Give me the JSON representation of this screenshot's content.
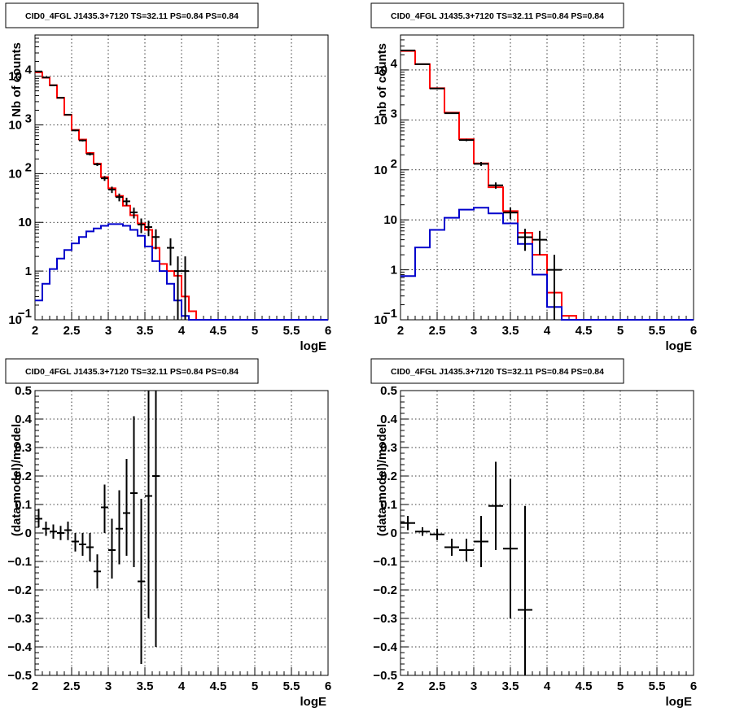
{
  "title_text": "CID0_4FGL J1435.3+7120 TS=32.11 PS=0.84 PS=0.84",
  "colors": {
    "data": "#000000",
    "model_total": "#ff0000",
    "model_source": "#0000cc",
    "grid": "#000000"
  },
  "chart_data": [
    {
      "type": "line",
      "title": "CID0_4FGL J1435.3+7120 TS=32.11 PS=0.84 PS=0.84",
      "xlabel": "logE",
      "ylabel": "Nb of counts",
      "xlim": [
        2,
        6
      ],
      "ylim": [
        0.1,
        70000
      ],
      "yscale": "log",
      "grid": true,
      "xticks": [
        "2",
        "2.5",
        "3",
        "3.5",
        "4",
        "4.5",
        "5",
        "5.5",
        "6"
      ],
      "yticks": [
        {
          "value": 0.1,
          "label": "10",
          "sup": "−1"
        },
        {
          "value": 1,
          "label": "1",
          "sup": ""
        },
        {
          "value": 10,
          "label": "10",
          "sup": ""
        },
        {
          "value": 100,
          "label": "10",
          "sup": "2"
        },
        {
          "value": 1000,
          "label": "10",
          "sup": "3"
        },
        {
          "value": 10000,
          "label": "10",
          "sup": "4"
        }
      ],
      "bin_edges": [
        2.0,
        2.1,
        2.2,
        2.3,
        2.4,
        2.5,
        2.6,
        2.7,
        2.8,
        2.9,
        3.0,
        3.1,
        3.2,
        3.3,
        3.4,
        3.5,
        3.6,
        3.7,
        3.8,
        3.9,
        4.0,
        4.1,
        4.2,
        4.3,
        4.4,
        4.5,
        4.6,
        4.7,
        4.8,
        4.9,
        5.0,
        5.1,
        5.2,
        5.3,
        5.4,
        5.5,
        5.6,
        5.7,
        5.8,
        5.9,
        6.0
      ],
      "series": [
        {
          "name": "",
          "kind": "step",
          "color": "#ff0000",
          "values": [
            12000,
            9300,
            6500,
            3600,
            1600,
            790,
            500,
            265,
            160,
            85,
            50,
            35,
            22,
            14,
            9.5,
            7.0,
            3.0,
            1.4,
            1.0,
            0.8,
            0.3,
            0.15,
            0.1,
            0.1,
            0.1,
            0.1,
            0.1,
            0.1,
            0.1,
            0.1,
            0.1,
            0.1,
            0.1,
            0.1,
            0.1,
            0.1,
            0.1,
            0.1,
            0.1,
            0.1
          ]
        },
        {
          "name": "",
          "kind": "step",
          "color": "#0000cc",
          "values": [
            0.25,
            0.55,
            1.1,
            1.8,
            2.7,
            3.7,
            5.0,
            6.5,
            7.5,
            8.5,
            9.2,
            9.2,
            8.5,
            7.0,
            5.3,
            3.2,
            1.6,
            1.0,
            0.55,
            0.25,
            0.12,
            0.1,
            0.1,
            0.1,
            0.1,
            0.1,
            0.1,
            0.1,
            0.1,
            0.1,
            0.1,
            0.1,
            0.1,
            0.1,
            0.1,
            0.1,
            0.1,
            0.1,
            0.1,
            0.1
          ]
        },
        {
          "name": "",
          "kind": "errorbars",
          "color": "#000000",
          "points": [
            {
              "x": 2.05,
              "y": 12500,
              "lo": 12390,
              "hi": 12610
            },
            {
              "x": 2.15,
              "y": 9400,
              "lo": 9300,
              "hi": 9500
            },
            {
              "x": 2.25,
              "y": 6500,
              "lo": 6420,
              "hi": 6580
            },
            {
              "x": 2.35,
              "y": 3600,
              "lo": 3540,
              "hi": 3660
            },
            {
              "x": 2.45,
              "y": 1620,
              "lo": 1580,
              "hi": 1660
            },
            {
              "x": 2.55,
              "y": 770,
              "lo": 742,
              "hi": 798
            },
            {
              "x": 2.65,
              "y": 480,
              "lo": 458,
              "hi": 502
            },
            {
              "x": 2.75,
              "y": 252,
              "lo": 236,
              "hi": 268
            },
            {
              "x": 2.85,
              "y": 155,
              "lo": 143,
              "hi": 167
            },
            {
              "x": 2.95,
              "y": 80,
              "lo": 71,
              "hi": 89
            },
            {
              "x": 3.05,
              "y": 47,
              "lo": 40,
              "hi": 54
            },
            {
              "x": 3.15,
              "y": 33,
              "lo": 27,
              "hi": 39
            },
            {
              "x": 3.25,
              "y": 27,
              "lo": 22,
              "hi": 32
            },
            {
              "x": 3.35,
              "y": 16,
              "lo": 12,
              "hi": 20
            },
            {
              "x": 3.45,
              "y": 9,
              "lo": 6,
              "hi": 12
            },
            {
              "x": 3.55,
              "y": 8,
              "lo": 5.2,
              "hi": 10.8
            },
            {
              "x": 3.65,
              "y": 5,
              "lo": 2.8,
              "hi": 7.2
            },
            {
              "x": 3.85,
              "y": 3,
              "lo": 1.3,
              "hi": 4.7
            },
            {
              "x": 3.95,
              "y": 1,
              "lo": 0.1,
              "hi": 2.0
            },
            {
              "x": 4.05,
              "y": 1,
              "lo": 0.1,
              "hi": 2.0
            }
          ]
        }
      ]
    },
    {
      "type": "line",
      "title": "CID0_4FGL J1435.3+7120 TS=32.11 PS=0.84 PS=0.84",
      "xlabel": "logE",
      "ylabel": "nb of counts",
      "xlim": [
        2,
        6
      ],
      "ylim": [
        0.1,
        50000
      ],
      "yscale": "log",
      "grid": true,
      "xticks": [
        "2",
        "2.5",
        "3",
        "3.5",
        "4",
        "4.5",
        "5",
        "5.5",
        "6"
      ],
      "yticks": [
        {
          "value": 0.1,
          "label": "10",
          "sup": "−1"
        },
        {
          "value": 1,
          "label": "1",
          "sup": ""
        },
        {
          "value": 10,
          "label": "10",
          "sup": ""
        },
        {
          "value": 100,
          "label": "10",
          "sup": "2"
        },
        {
          "value": 1000,
          "label": "10",
          "sup": "3"
        },
        {
          "value": 10000,
          "label": "10",
          "sup": "4"
        }
      ],
      "bin_edges": [
        2.0,
        2.2,
        2.4,
        2.6,
        2.8,
        3.0,
        3.2,
        3.4,
        3.6,
        3.8,
        4.0,
        4.2,
        4.4,
        4.6,
        4.8,
        5.0,
        5.2,
        5.4,
        5.6,
        5.8,
        6.0
      ],
      "series": [
        {
          "name": "",
          "kind": "step",
          "color": "#ff0000",
          "values": [
            24000,
            13000,
            4300,
            1400,
            410,
            135,
            45,
            15,
            5.5,
            2.0,
            0.35,
            0.12,
            0.1,
            0.1,
            0.1,
            0.1,
            0.1,
            0.1,
            0.1,
            0.1
          ]
        },
        {
          "name": "",
          "kind": "step",
          "color": "#0000cc",
          "values": [
            0.75,
            2.8,
            6.3,
            11,
            16,
            17.5,
            13.5,
            8.5,
            3.3,
            0.8,
            0.18,
            0.1,
            0.1,
            0.1,
            0.1,
            0.1,
            0.1,
            0.1,
            0.1,
            0.1
          ]
        },
        {
          "name": "",
          "kind": "errorbars",
          "color": "#000000",
          "points": [
            {
              "x": 2.1,
              "y": 24500,
              "lo": 24340,
              "hi": 24660
            },
            {
              "x": 2.3,
              "y": 13000,
              "lo": 12890,
              "hi": 13110
            },
            {
              "x": 2.5,
              "y": 4250,
              "lo": 4185,
              "hi": 4315
            },
            {
              "x": 2.7,
              "y": 1360,
              "lo": 1323,
              "hi": 1397
            },
            {
              "x": 2.9,
              "y": 395,
              "lo": 375,
              "hi": 415
            },
            {
              "x": 3.1,
              "y": 132,
              "lo": 120,
              "hi": 144
            },
            {
              "x": 3.3,
              "y": 49,
              "lo": 42,
              "hi": 56
            },
            {
              "x": 3.5,
              "y": 14,
              "lo": 10.3,
              "hi": 17.7
            },
            {
              "x": 3.7,
              "y": 4.5,
              "lo": 2.4,
              "hi": 6.6
            },
            {
              "x": 3.9,
              "y": 4,
              "lo": 2.0,
              "hi": 6.0
            },
            {
              "x": 4.1,
              "y": 1,
              "lo": 0.1,
              "hi": 2.0
            }
          ]
        }
      ]
    },
    {
      "type": "scatter",
      "title": "CID0_4FGL J1435.3+7120 TS=32.11 PS=0.84 PS=0.84",
      "xlabel": "logE",
      "ylabel": "(data-model)/model",
      "xlim": [
        2,
        6
      ],
      "ylim": [
        -0.5,
        0.5
      ],
      "yscale": "linear",
      "grid": true,
      "xticks": [
        "2",
        "2.5",
        "3",
        "3.5",
        "4",
        "4.5",
        "5",
        "5.5",
        "6"
      ],
      "yticks": [
        {
          "value": -0.5,
          "label": "−0.5",
          "sup": ""
        },
        {
          "value": -0.4,
          "label": "−0.4",
          "sup": ""
        },
        {
          "value": -0.3,
          "label": "−0.3",
          "sup": ""
        },
        {
          "value": -0.2,
          "label": "−0.2",
          "sup": ""
        },
        {
          "value": -0.1,
          "label": "−0.1",
          "sup": ""
        },
        {
          "value": 0,
          "label": "0",
          "sup": ""
        },
        {
          "value": 0.1,
          "label": "0.1",
          "sup": ""
        },
        {
          "value": 0.2,
          "label": "0.2",
          "sup": ""
        },
        {
          "value": 0.3,
          "label": "0.3",
          "sup": ""
        },
        {
          "value": 0.4,
          "label": "0.4",
          "sup": ""
        },
        {
          "value": 0.5,
          "label": "0.5",
          "sup": ""
        }
      ],
      "xhalf": 0.05,
      "series": [
        {
          "name": "",
          "kind": "errorbars",
          "color": "#000000",
          "points": [
            {
              "x": 2.05,
              "y": 0.05,
              "lo": 0.02,
              "hi": 0.085
            },
            {
              "x": 2.15,
              "y": 0.015,
              "lo": -0.01,
              "hi": 0.04
            },
            {
              "x": 2.25,
              "y": 0.005,
              "lo": -0.02,
              "hi": 0.03
            },
            {
              "x": 2.35,
              "y": 0.0,
              "lo": -0.025,
              "hi": 0.025
            },
            {
              "x": 2.45,
              "y": 0.01,
              "lo": -0.025,
              "hi": 0.04
            },
            {
              "x": 2.55,
              "y": -0.03,
              "lo": -0.065,
              "hi": 0.0
            },
            {
              "x": 2.65,
              "y": -0.04,
              "lo": -0.08,
              "hi": 0.0
            },
            {
              "x": 2.75,
              "y": -0.05,
              "lo": -0.1,
              "hi": 0.0
            },
            {
              "x": 2.85,
              "y": -0.135,
              "lo": -0.195,
              "hi": -0.075
            },
            {
              "x": 2.95,
              "y": 0.09,
              "lo": 0.0,
              "hi": 0.17
            },
            {
              "x": 3.05,
              "y": -0.06,
              "lo": -0.16,
              "hi": 0.05
            },
            {
              "x": 3.15,
              "y": 0.015,
              "lo": -0.11,
              "hi": 0.15
            },
            {
              "x": 3.25,
              "y": 0.07,
              "lo": -0.08,
              "hi": 0.26
            },
            {
              "x": 3.35,
              "y": 0.14,
              "lo": -0.12,
              "hi": 0.41
            },
            {
              "x": 3.45,
              "y": -0.17,
              "lo": -0.46,
              "hi": 0.12
            },
            {
              "x": 3.55,
              "y": 0.13,
              "lo": -0.3,
              "hi": 0.5
            },
            {
              "x": 3.65,
              "y": 0.2,
              "lo": -0.4,
              "hi": 0.5
            }
          ]
        }
      ]
    },
    {
      "type": "scatter",
      "title": "CID0_4FGL J1435.3+7120 TS=32.11 PS=0.84 PS=0.84",
      "xlabel": "logE",
      "ylabel": "(data-model)/model",
      "xlim": [
        2,
        6
      ],
      "ylim": [
        -0.5,
        0.5
      ],
      "yscale": "linear",
      "grid": true,
      "xticks": [
        "2",
        "2.5",
        "3",
        "3.5",
        "4",
        "4.5",
        "5",
        "5.5",
        "6"
      ],
      "yticks": [
        {
          "value": -0.5,
          "label": "−0.5",
          "sup": ""
        },
        {
          "value": -0.4,
          "label": "−0.4",
          "sup": ""
        },
        {
          "value": -0.3,
          "label": "−0.3",
          "sup": ""
        },
        {
          "value": -0.2,
          "label": "−0.2",
          "sup": ""
        },
        {
          "value": -0.1,
          "label": "−0.1",
          "sup": ""
        },
        {
          "value": 0,
          "label": "0",
          "sup": ""
        },
        {
          "value": 0.1,
          "label": "0.1",
          "sup": ""
        },
        {
          "value": 0.2,
          "label": "0.2",
          "sup": ""
        },
        {
          "value": 0.3,
          "label": "0.3",
          "sup": ""
        },
        {
          "value": 0.4,
          "label": "0.4",
          "sup": ""
        },
        {
          "value": 0.5,
          "label": "0.5",
          "sup": ""
        }
      ],
      "xhalf": 0.1,
      "series": [
        {
          "name": "",
          "kind": "errorbars",
          "color": "#000000",
          "points": [
            {
              "x": 2.1,
              "y": 0.035,
              "lo": 0.01,
              "hi": 0.06
            },
            {
              "x": 2.3,
              "y": 0.005,
              "lo": -0.01,
              "hi": 0.02
            },
            {
              "x": 2.5,
              "y": -0.005,
              "lo": -0.025,
              "hi": 0.015
            },
            {
              "x": 2.7,
              "y": -0.05,
              "lo": -0.08,
              "hi": -0.02
            },
            {
              "x": 2.9,
              "y": -0.06,
              "lo": -0.1,
              "hi": -0.02
            },
            {
              "x": 3.1,
              "y": -0.03,
              "lo": -0.12,
              "hi": 0.06
            },
            {
              "x": 3.3,
              "y": 0.095,
              "lo": -0.06,
              "hi": 0.25
            },
            {
              "x": 3.5,
              "y": -0.055,
              "lo": -0.3,
              "hi": 0.19
            },
            {
              "x": 3.7,
              "y": -0.27,
              "lo": -0.5,
              "hi": 0.095
            }
          ]
        }
      ]
    }
  ]
}
